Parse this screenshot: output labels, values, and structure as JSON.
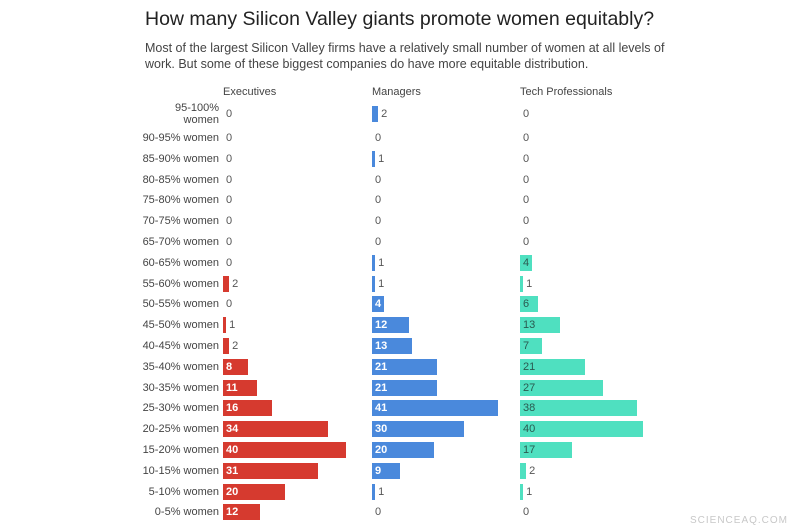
{
  "chart_data": {
    "type": "bar",
    "orientation": "horizontal",
    "title": "How many Silicon Valley giants promote women equitably?",
    "subtitle": "Most of the largest Silicon Valley firms have a relatively small number of women at all levels of work. But some of these biggest companies do have more equitable distribution.",
    "categories": [
      "95-100% women",
      "90-95% women",
      "85-90% women",
      "80-85% women",
      "75-80% women",
      "70-75% women",
      "65-70% women",
      "60-65% women",
      "55-60% women",
      "50-55% women",
      "45-50% women",
      "40-45% women",
      "35-40% women",
      "30-35% women",
      "25-30% women",
      "20-25% women",
      "15-20% women",
      "10-15% women",
      "5-10% women",
      "0-5% women"
    ],
    "series": [
      {
        "name": "Executives",
        "color": "#d63a2f",
        "text_color": "#ffffff",
        "values": [
          0,
          0,
          0,
          0,
          0,
          0,
          0,
          0,
          2,
          0,
          1,
          2,
          8,
          11,
          16,
          34,
          40,
          31,
          20,
          12
        ]
      },
      {
        "name": "Managers",
        "color": "#4a89dc",
        "text_color": "#ffffff",
        "values": [
          2,
          0,
          1,
          0,
          0,
          0,
          0,
          1,
          1,
          4,
          12,
          13,
          21,
          21,
          41,
          30,
          20,
          9,
          1,
          0
        ]
      },
      {
        "name": "Tech Professionals",
        "color": "#4fe0c0",
        "text_color": "#2a5a50",
        "values": [
          0,
          0,
          0,
          0,
          0,
          0,
          0,
          4,
          1,
          6,
          13,
          7,
          21,
          27,
          38,
          40,
          17,
          2,
          1,
          0
        ]
      }
    ],
    "data_labels": true,
    "grid": false,
    "xlim": [
      0,
      41
    ]
  },
  "watermark": "SCIENCEAQ.COM"
}
